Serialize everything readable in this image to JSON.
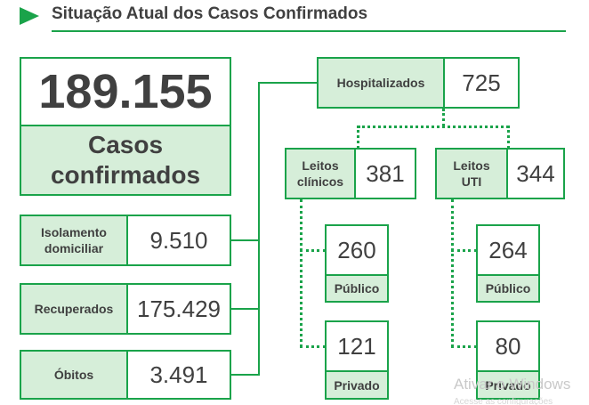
{
  "header": {
    "title": "Situação Atual dos Casos Confirmados"
  },
  "main_stat": {
    "value": "189.155",
    "label_line1": "Casos",
    "label_line2": "confirmados"
  },
  "left_stats": [
    {
      "label_line1": "Isolamento",
      "label_line2": "domiciliar",
      "value": "9.510"
    },
    {
      "label": "Recuperados",
      "value": "175.429"
    },
    {
      "label": "Óbitos",
      "value": "3.491"
    }
  ],
  "hospital": {
    "label": "Hospitalizados",
    "value": "725",
    "clinical": {
      "label_line1": "Leitos",
      "label_line2": "clínicos",
      "value": "381",
      "public_value": "260",
      "public_label": "Público",
      "private_value": "121",
      "private_label": "Privado"
    },
    "icu": {
      "label_line1": "Leitos",
      "label_line2": "UTI",
      "value": "344",
      "public_value": "264",
      "public_label": "Público",
      "private_value": "80",
      "private_label": "Privado"
    }
  },
  "os_watermark": {
    "line1": "Ativar o Windows",
    "line2": "Acesse as configurações"
  },
  "colors": {
    "accent": "#1aa34a",
    "label_fill": "#d6eed9",
    "text": "#404040"
  }
}
